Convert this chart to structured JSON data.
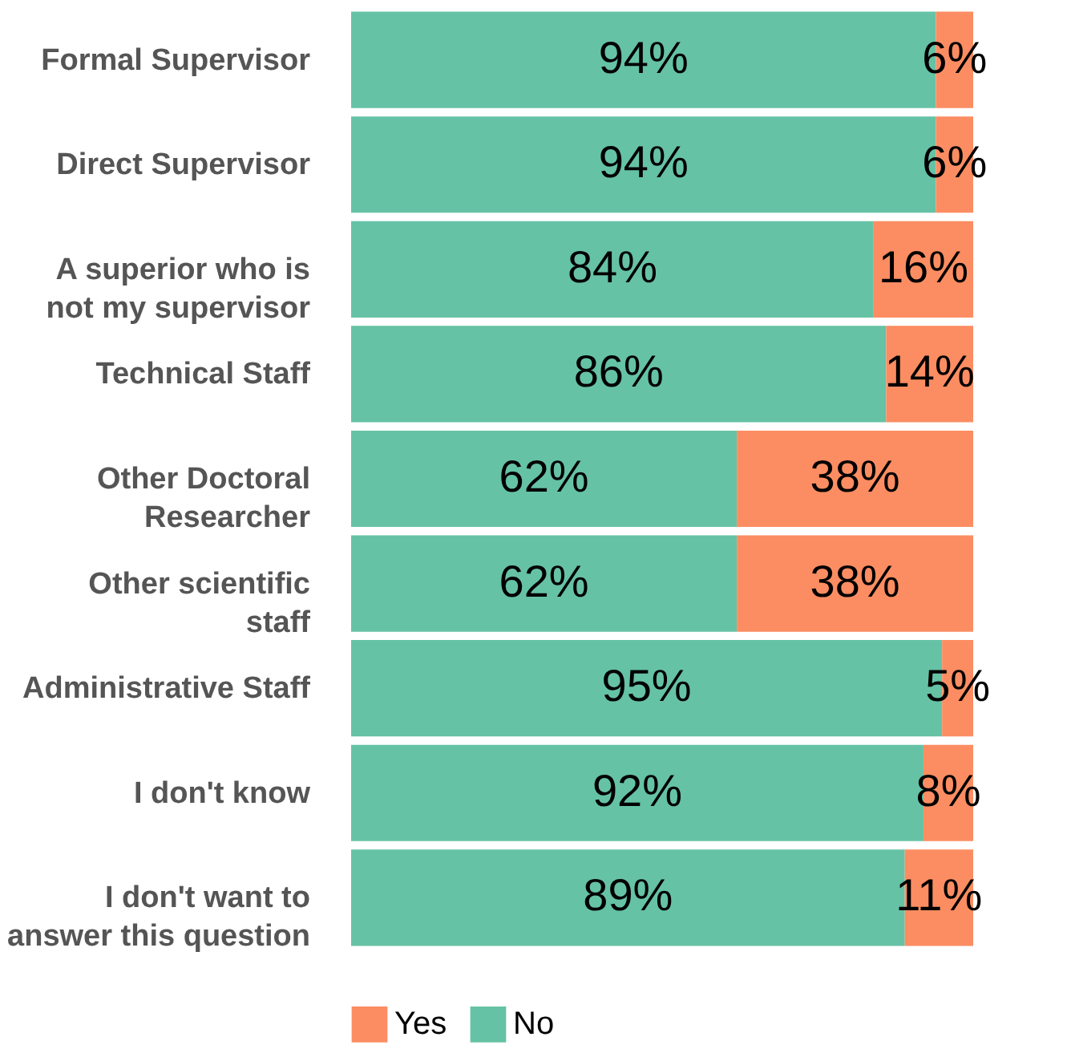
{
  "chart_data": {
    "type": "bar",
    "orientation": "horizontal",
    "stacked": true,
    "legend": "bottom",
    "categories": [
      "Formal Supervisor",
      "Direct Supervisor",
      "A superior who is\nnot my supervisor",
      "Technical Staff",
      "Other Doctoral\nResearcher",
      "Other scientific\nstaff",
      "Administrative Staff",
      "I don't know",
      "I don't want to\nanswer this question"
    ],
    "series": [
      {
        "name": "No",
        "color": "#66c2a5",
        "values": [
          94,
          94,
          84,
          86,
          62,
          62,
          95,
          92,
          89
        ],
        "value_labels": [
          "94%",
          "94%",
          "84%",
          "86%",
          "62%",
          "62%",
          "95%",
          "92%",
          "89%"
        ]
      },
      {
        "name": "Yes",
        "color": "#fc8d62",
        "values": [
          6,
          6,
          16,
          14,
          38,
          38,
          5,
          8,
          11
        ],
        "value_labels": [
          "6%",
          "6%",
          "16%",
          "14%",
          "38%",
          "38%",
          "5%",
          "8%",
          "11%"
        ]
      }
    ]
  }
}
